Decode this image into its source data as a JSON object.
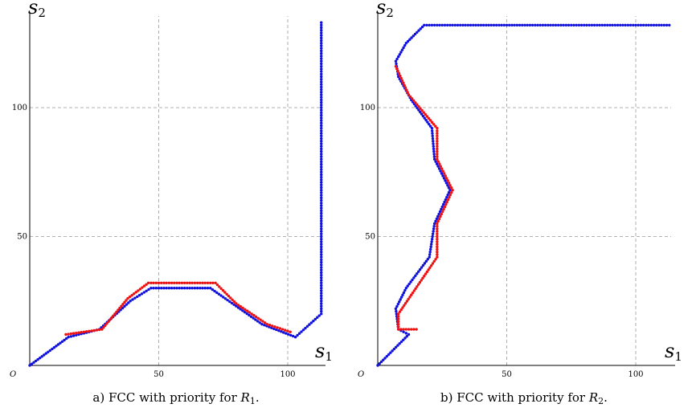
{
  "chart_data": [
    {
      "type": "scatter",
      "panel": "a",
      "caption_prefix": "a) FCC with priority for ",
      "caption_var": "R",
      "caption_sub": "1",
      "caption_suffix": ".",
      "xlabel": "s",
      "xlabel_sub": "1",
      "ylabel": "s",
      "ylabel_sub": "2",
      "origin_label": "O",
      "xlim": [
        0,
        115
      ],
      "ylim": [
        0,
        135
      ],
      "x_ticks": [
        50,
        100
      ],
      "y_ticks": [
        50,
        100
      ],
      "grid": true,
      "colors": {
        "blue": "#1010dd",
        "red": "#ee1111"
      },
      "series": [
        {
          "color": "blue",
          "polyline": [
            [
              0,
              0
            ],
            [
              15,
              11
            ],
            [
              27,
              14
            ],
            [
              39,
              25
            ],
            [
              47,
              30
            ],
            [
              70,
              30
            ],
            [
              80,
              23
            ],
            [
              90,
              16
            ],
            [
              103,
              11
            ],
            [
              113,
              20
            ],
            [
              113,
              133
            ]
          ]
        },
        {
          "color": "red",
          "polyline": [
            [
              14,
              12
            ],
            [
              28,
              14
            ],
            [
              38,
              26
            ],
            [
              46,
              32
            ],
            [
              72,
              32
            ],
            [
              80,
              24
            ],
            [
              92,
              16
            ],
            [
              101,
              13
            ]
          ]
        }
      ]
    },
    {
      "type": "scatter",
      "panel": "b",
      "caption_prefix": "b) FCC with priority for ",
      "caption_var": "R",
      "caption_sub": "2",
      "caption_suffix": ".",
      "xlabel": "s",
      "xlabel_sub": "1",
      "ylabel": "s",
      "ylabel_sub": "2",
      "origin_label": "O",
      "xlim": [
        0,
        115
      ],
      "ylim": [
        0,
        135
      ],
      "x_ticks": [
        50,
        100
      ],
      "y_ticks": [
        50,
        100
      ],
      "grid": true,
      "colors": {
        "blue": "#1010dd",
        "red": "#ee1111"
      },
      "series": [
        {
          "color": "blue",
          "polyline": [
            [
              0,
              0
            ],
            [
              12,
              12
            ],
            [
              8,
              14
            ],
            [
              7,
              22
            ],
            [
              11,
              30
            ],
            [
              20,
              42
            ],
            [
              22,
              55
            ],
            [
              28,
              68
            ],
            [
              22,
              80
            ],
            [
              21,
              92
            ],
            [
              13,
              103
            ],
            [
              8,
              112
            ],
            [
              7,
              118
            ],
            [
              11,
              125
            ],
            [
              18,
              132
            ],
            [
              113,
              132
            ]
          ]
        },
        {
          "color": "red",
          "polyline": [
            [
              15,
              14
            ],
            [
              8,
              14
            ],
            [
              8,
              20
            ],
            [
              23,
              42
            ],
            [
              23,
              55
            ],
            [
              29,
              68
            ],
            [
              23,
              80
            ],
            [
              23,
              92
            ],
            [
              12,
              105
            ],
            [
              7,
              116
            ]
          ]
        }
      ]
    }
  ]
}
